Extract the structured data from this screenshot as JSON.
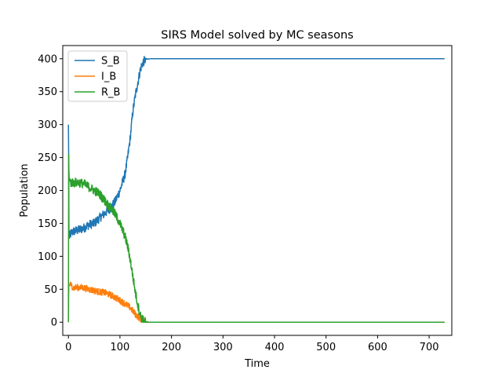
{
  "chart_data": {
    "type": "line",
    "title": "SIRS Model solved by MC seasons",
    "xlabel": "Time",
    "ylabel": "Population",
    "xlim": [
      -11,
      744
    ],
    "ylim": [
      -20,
      420
    ],
    "xticks": [
      0,
      100,
      200,
      300,
      400,
      500,
      600,
      700
    ],
    "yticks": [
      0,
      50,
      100,
      150,
      200,
      250,
      300,
      350,
      400
    ],
    "grid": false,
    "legend": "upper-left",
    "series": [
      {
        "name": "S_B",
        "color": "#1f77b4",
        "points": [
          [
            0,
            300
          ],
          [
            0.5,
            250
          ],
          [
            1,
            140
          ],
          [
            2,
            130
          ],
          [
            5,
            135
          ],
          [
            10,
            138
          ],
          [
            20,
            140
          ],
          [
            30,
            143
          ],
          [
            40,
            148
          ],
          [
            50,
            150
          ],
          [
            60,
            158
          ],
          [
            70,
            165
          ],
          [
            80,
            172
          ],
          [
            90,
            182
          ],
          [
            100,
            200
          ],
          [
            110,
            225
          ],
          [
            115,
            250
          ],
          [
            120,
            280
          ],
          [
            125,
            320
          ],
          [
            130,
            345
          ],
          [
            135,
            365
          ],
          [
            140,
            385
          ],
          [
            145,
            395
          ],
          [
            150,
            399
          ],
          [
            160,
            400
          ],
          [
            730,
            400
          ]
        ]
      },
      {
        "name": "I_B",
        "color": "#ff7f0e",
        "points": [
          [
            0,
            0
          ],
          [
            0.5,
            40
          ],
          [
            1,
            55
          ],
          [
            3,
            58
          ],
          [
            10,
            52
          ],
          [
            20,
            53
          ],
          [
            30,
            52
          ],
          [
            40,
            50
          ],
          [
            50,
            48
          ],
          [
            60,
            46
          ],
          [
            70,
            45
          ],
          [
            80,
            42
          ],
          [
            90,
            38
          ],
          [
            100,
            33
          ],
          [
            110,
            28
          ],
          [
            120,
            22
          ],
          [
            130,
            12
          ],
          [
            140,
            5
          ],
          [
            145,
            2
          ],
          [
            150,
            0
          ],
          [
            730,
            0
          ]
        ]
      },
      {
        "name": "R_B",
        "color": "#2ca02c",
        "points": [
          [
            0,
            0
          ],
          [
            0.5,
            255
          ],
          [
            1,
            230
          ],
          [
            2,
            215
          ],
          [
            5,
            212
          ],
          [
            10,
            212
          ],
          [
            20,
            212
          ],
          [
            30,
            210
          ],
          [
            40,
            205
          ],
          [
            50,
            200
          ],
          [
            60,
            195
          ],
          [
            70,
            185
          ],
          [
            80,
            175
          ],
          [
            90,
            165
          ],
          [
            100,
            150
          ],
          [
            110,
            130
          ],
          [
            115,
            115
          ],
          [
            120,
            95
          ],
          [
            125,
            70
          ],
          [
            130,
            45
          ],
          [
            135,
            25
          ],
          [
            140,
            10
          ],
          [
            145,
            3
          ],
          [
            150,
            0
          ],
          [
            730,
            0
          ]
        ]
      }
    ]
  }
}
